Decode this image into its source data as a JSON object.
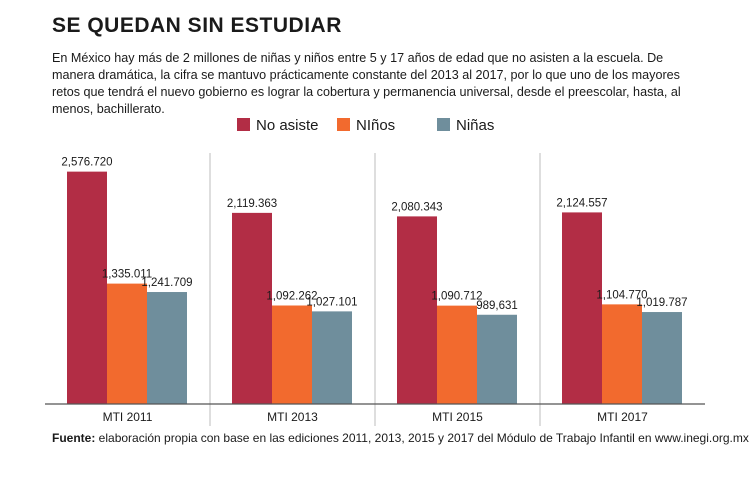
{
  "header": {
    "title": "SE QUEDAN SIN ESTUDIAR",
    "intro": "En México hay más de 2 millones de niñas y niños entre 5 y 17 años de edad que no asisten a la escuela. De manera dramática, la cifra se mantuvo prácticamente constante del 2013 al 2017, por lo que uno de los mayores retos que tendrá el nuevo gobierno es lograr la cobertura y permanencia universal, desde el preescolar, hasta, al menos, bachillerato."
  },
  "source": {
    "label": "Fuente:",
    "text": " elaboración propia con base en las ediciones 2011, 2013, 2015 y 2017 del Módulo de Trabajo Infantil en www.inegi.org.mx"
  },
  "colors": {
    "no_asiste": "#b22d45",
    "ninos": "#f26a2e",
    "ninas": "#6f8e9c",
    "divider": "#bdbdbd",
    "axis": "#555555"
  },
  "chart_data": {
    "type": "bar",
    "categories": [
      "MTI 2011",
      "MTI 2013",
      "MTI 2015",
      "MTI 2017"
    ],
    "series": [
      {
        "name": "No asiste",
        "values": [
          2576720,
          2119363,
          2080343,
          2124557
        ],
        "labels": [
          "2,576.720",
          "2,119.363",
          "2,080.343",
          "2,124.557"
        ]
      },
      {
        "name": "NIños",
        "values": [
          1335011,
          1092262,
          1090712,
          1104770
        ],
        "labels": [
          "1,335.011",
          "1,092.262",
          "1,090.712",
          "1,104.770"
        ]
      },
      {
        "name": "Niñas",
        "values": [
          1241709,
          1027101,
          989631,
          1019787
        ],
        "labels": [
          "1,241.709",
          "1,027.101",
          "989,631",
          "1,019.787"
        ]
      }
    ],
    "ylim": [
      0,
      2750000
    ],
    "grid": false,
    "legend": "top-center"
  }
}
